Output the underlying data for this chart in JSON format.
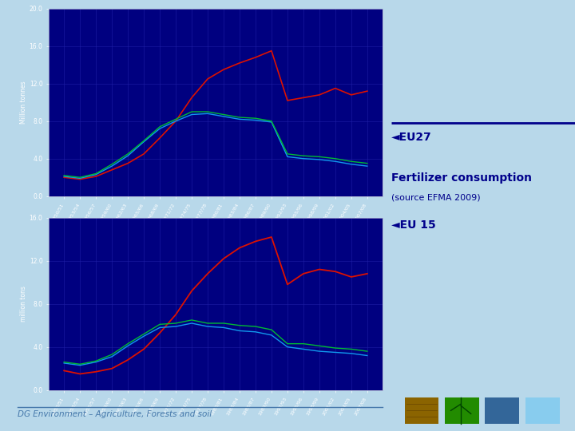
{
  "bg_color": "#b8d8ea",
  "plot_bg": "#000080",
  "x_labels": [
    "1950/51",
    "1953/54",
    "1956/57",
    "1959/60",
    "1962/63",
    "1965/66",
    "1968/69",
    "1971/72",
    "1974/75",
    "1977/78",
    "1980/81",
    "1983/84",
    "1986/87",
    "1989/90",
    "1992/93",
    "1995/96",
    "1998/99",
    "2001/02",
    "2004/05",
    "2007/08"
  ],
  "eu27_N": [
    2.0,
    1.8,
    2.1,
    2.8,
    3.5,
    4.5,
    6.2,
    8.0,
    10.5,
    12.5,
    13.5,
    14.2,
    14.8,
    15.5,
    10.2,
    10.5,
    10.8,
    11.5,
    10.8,
    11.2
  ],
  "eu27_P205": [
    2.1,
    1.9,
    2.3,
    3.2,
    4.3,
    5.8,
    7.2,
    8.0,
    8.7,
    8.8,
    8.5,
    8.2,
    8.1,
    7.9,
    4.2,
    4.0,
    3.9,
    3.7,
    3.4,
    3.2
  ],
  "eu27_K2O": [
    2.2,
    2.0,
    2.4,
    3.4,
    4.5,
    5.9,
    7.4,
    8.2,
    9.0,
    9.0,
    8.7,
    8.4,
    8.3,
    8.0,
    4.5,
    4.3,
    4.2,
    4.0,
    3.7,
    3.5
  ],
  "eu15_N": [
    1.8,
    1.5,
    1.7,
    2.0,
    2.8,
    3.8,
    5.3,
    7.0,
    9.2,
    10.8,
    12.2,
    13.2,
    13.8,
    14.2,
    9.8,
    10.8,
    11.2,
    11.0,
    10.5,
    10.8
  ],
  "eu15_P205": [
    2.5,
    2.3,
    2.6,
    3.1,
    4.1,
    5.0,
    5.8,
    5.9,
    6.2,
    5.9,
    5.8,
    5.5,
    5.4,
    5.1,
    4.0,
    3.8,
    3.6,
    3.5,
    3.4,
    3.2
  ],
  "eu15_K2O": [
    2.6,
    2.4,
    2.7,
    3.3,
    4.3,
    5.2,
    6.1,
    6.2,
    6.5,
    6.2,
    6.2,
    6.0,
    5.9,
    5.6,
    4.3,
    4.3,
    4.1,
    3.9,
    3.8,
    3.6
  ],
  "line_N_color": "#dd1100",
  "line_P205_color": "#1199ee",
  "line_K2O_color": "#00bb33",
  "grid_color": "#2222aa",
  "tick_color": "#ffffff",
  "label_color": "#ffffff",
  "eu27_ylabel": "Million tonnes",
  "eu15_ylabel": "million tons",
  "right_text_title": "Fertilizer consumption",
  "right_text_subtitle": "(source EFMA 2009)",
  "right_eu27": "EU27",
  "right_eu15": "EU 15",
  "footer_text": "DG Environment – Agriculture, Forests and soil",
  "eu27_ylim": [
    0,
    20
  ],
  "eu15_ylim": [
    0,
    16
  ],
  "eu27_yticks": [
    0.0,
    4.0,
    8.0,
    12.0,
    16.0,
    20.0
  ],
  "eu15_yticks": [
    0.0,
    4.0,
    8.0,
    12.0,
    16.0
  ],
  "dark_line_color": "#00008B",
  "right_text_color": "#00008B",
  "footer_color": "#4477aa",
  "icon_colors": [
    "#8B6400",
    "#228B00",
    "#336699",
    "#88CCEE"
  ]
}
